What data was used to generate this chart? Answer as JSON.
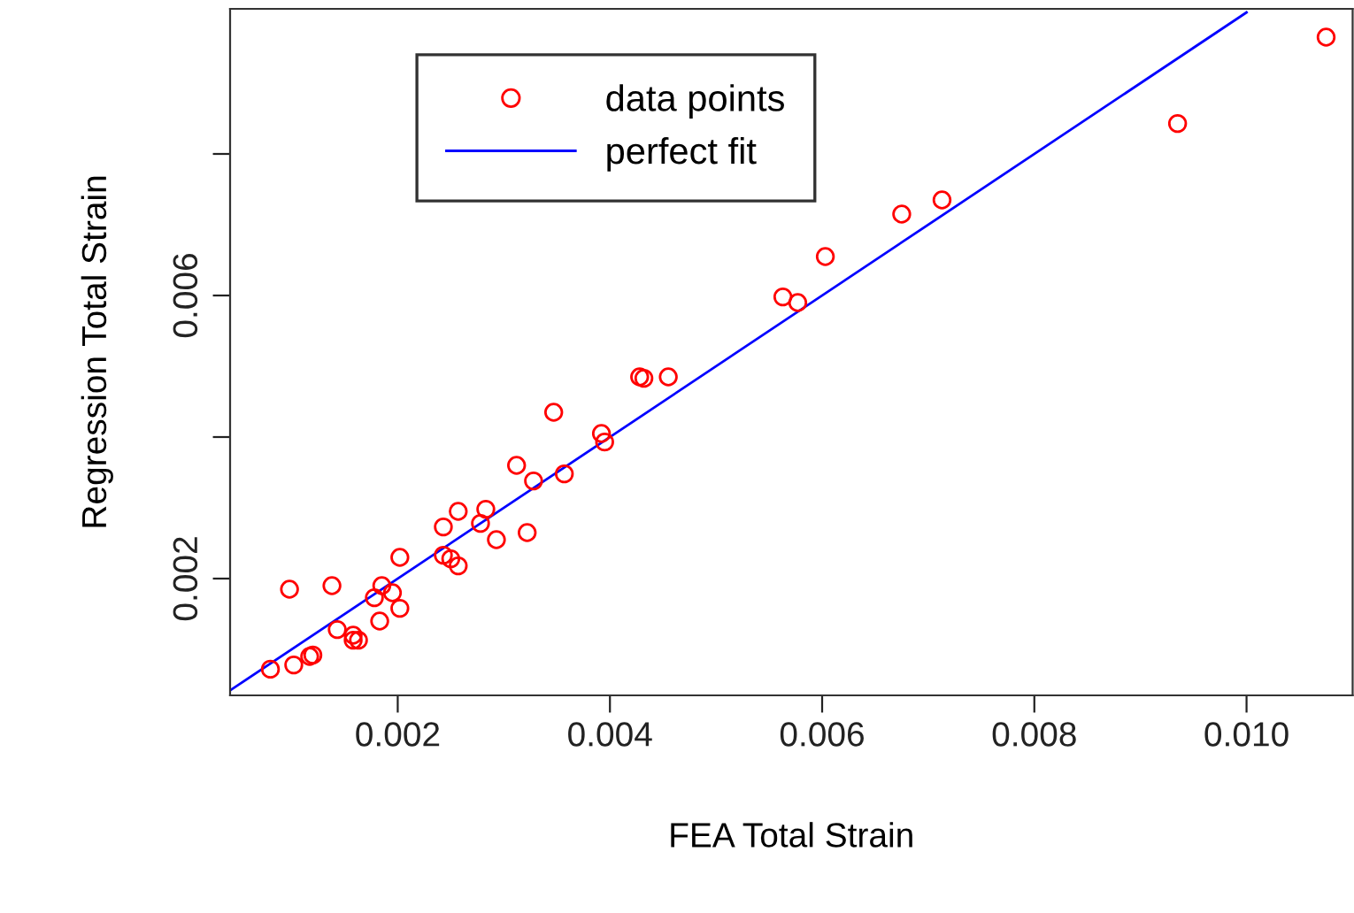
{
  "chart_data": {
    "type": "scatter",
    "xlabel": "FEA Total Strain",
    "ylabel": "Regression Total Strain",
    "xlim": [
      0.00042,
      0.011
    ],
    "ylim": [
      0.00035,
      0.01005
    ],
    "xticks": [
      0.002,
      0.004,
      0.006,
      0.008,
      {
        "value": 0.01,
        "label": "0.010"
      }
    ],
    "yticks": [
      0.002,
      {
        "value": 0.004,
        "label": null
      },
      0.006,
      {
        "value": 0.008,
        "label": null
      }
    ],
    "grid": false,
    "legend": "top left",
    "marker": "circle",
    "series": [
      {
        "name": "data points",
        "color": "#ff0000",
        "x": [
          0.0008,
          0.00102,
          0.00117,
          0.0012,
          0.00098,
          0.00138,
          0.00143,
          0.00158,
          0.00158,
          0.00163,
          0.00178,
          0.00183,
          0.00185,
          0.00195,
          0.00202,
          0.00202,
          0.00243,
          0.00243,
          0.0025,
          0.00257,
          0.00257,
          0.00278,
          0.00283,
          0.00293,
          0.00312,
          0.00322,
          0.00328,
          0.00347,
          0.00357,
          0.00392,
          0.00395,
          0.00428,
          0.00432,
          0.00455,
          0.00563,
          0.00577,
          0.00603,
          0.00675,
          0.00713,
          0.00935,
          0.01075
        ],
        "values": [
          0.00072,
          0.00078,
          0.0009,
          0.00092,
          0.00185,
          0.0019,
          0.00128,
          0.0012,
          0.00113,
          0.00113,
          0.00173,
          0.0014,
          0.0019,
          0.0018,
          0.0023,
          0.00158,
          0.00273,
          0.00233,
          0.00228,
          0.00218,
          0.00295,
          0.00278,
          0.00298,
          0.00255,
          0.0036,
          0.00265,
          0.00338,
          0.00435,
          0.00348,
          0.00405,
          0.00393,
          0.00485,
          0.00483,
          0.00485,
          0.00598,
          0.0059,
          0.00655,
          0.00715,
          0.00735,
          0.00843,
          0.00965
        ]
      },
      {
        "name": "perfect fit",
        "type": "line",
        "color": "#0000ff",
        "marker": "none",
        "x": [
          0.00042,
          0.01
        ],
        "values": [
          0.00042,
          0.01
        ]
      }
    ]
  }
}
